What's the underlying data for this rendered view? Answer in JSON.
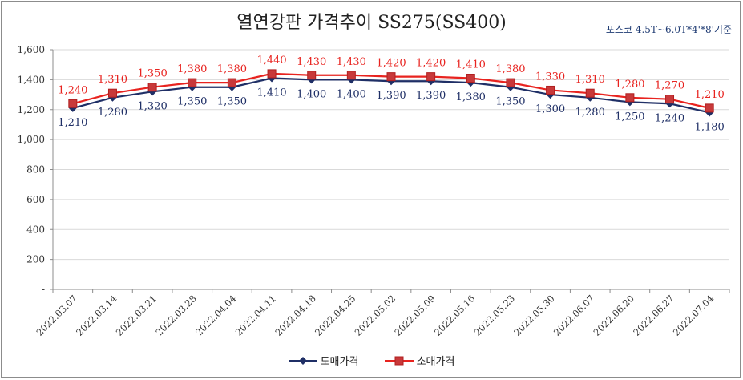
{
  "chart_data": {
    "type": "line",
    "title": "열연강판 가격추이 SS275(SS400)",
    "subtitle": "포스코 4.5T~6.0T*4'*8'기준",
    "categories": [
      "2022.03.07",
      "2022.03.14",
      "2022.03.21",
      "2022.03.28",
      "2022.04.04",
      "2022.04.11",
      "2022.04.18",
      "2022.04.25",
      "2022.05.02",
      "2022.05.09",
      "2022.05.16",
      "2022.05.23",
      "2022.05.30",
      "2022.06.07",
      "2022.06.20",
      "2022.06.27",
      "2022.07.04"
    ],
    "ylim": [
      0,
      1600
    ],
    "yticks": [
      0,
      200,
      400,
      600,
      800,
      1000,
      1200,
      1400,
      1600
    ],
    "ytick_labels": [
      "-",
      "200",
      "400",
      "600",
      "800",
      "1,000",
      "1,200",
      "1,400",
      "1,600"
    ],
    "grid": true,
    "legend_position": "bottom",
    "series": [
      {
        "name": "도매가격",
        "color": "#1f2f66",
        "marker": "diamond",
        "values": [
          1210,
          1280,
          1320,
          1350,
          1350,
          1410,
          1400,
          1400,
          1390,
          1390,
          1380,
          1350,
          1300,
          1280,
          1250,
          1240,
          1180
        ],
        "labels": [
          "1,210",
          "1,280",
          "1,320",
          "1,350",
          "1,350",
          "1,410",
          "1,400",
          "1,400",
          "1,390",
          "1,390",
          "1,380",
          "1,350",
          "1,300",
          "1,280",
          "1,250",
          "1,240",
          "1,180"
        ]
      },
      {
        "name": "소매가격",
        "color": "#e8231f",
        "marker": "square",
        "values": [
          1240,
          1310,
          1350,
          1380,
          1380,
          1440,
          1430,
          1430,
          1420,
          1420,
          1410,
          1380,
          1330,
          1310,
          1280,
          1270,
          1210
        ],
        "labels": [
          "1,240",
          "1,310",
          "1,350",
          "1,380",
          "1,380",
          "1,440",
          "1,430",
          "1,430",
          "1,420",
          "1,420",
          "1,410",
          "1,380",
          "1,330",
          "1,310",
          "1,280",
          "1,270",
          "1,210"
        ]
      }
    ]
  }
}
